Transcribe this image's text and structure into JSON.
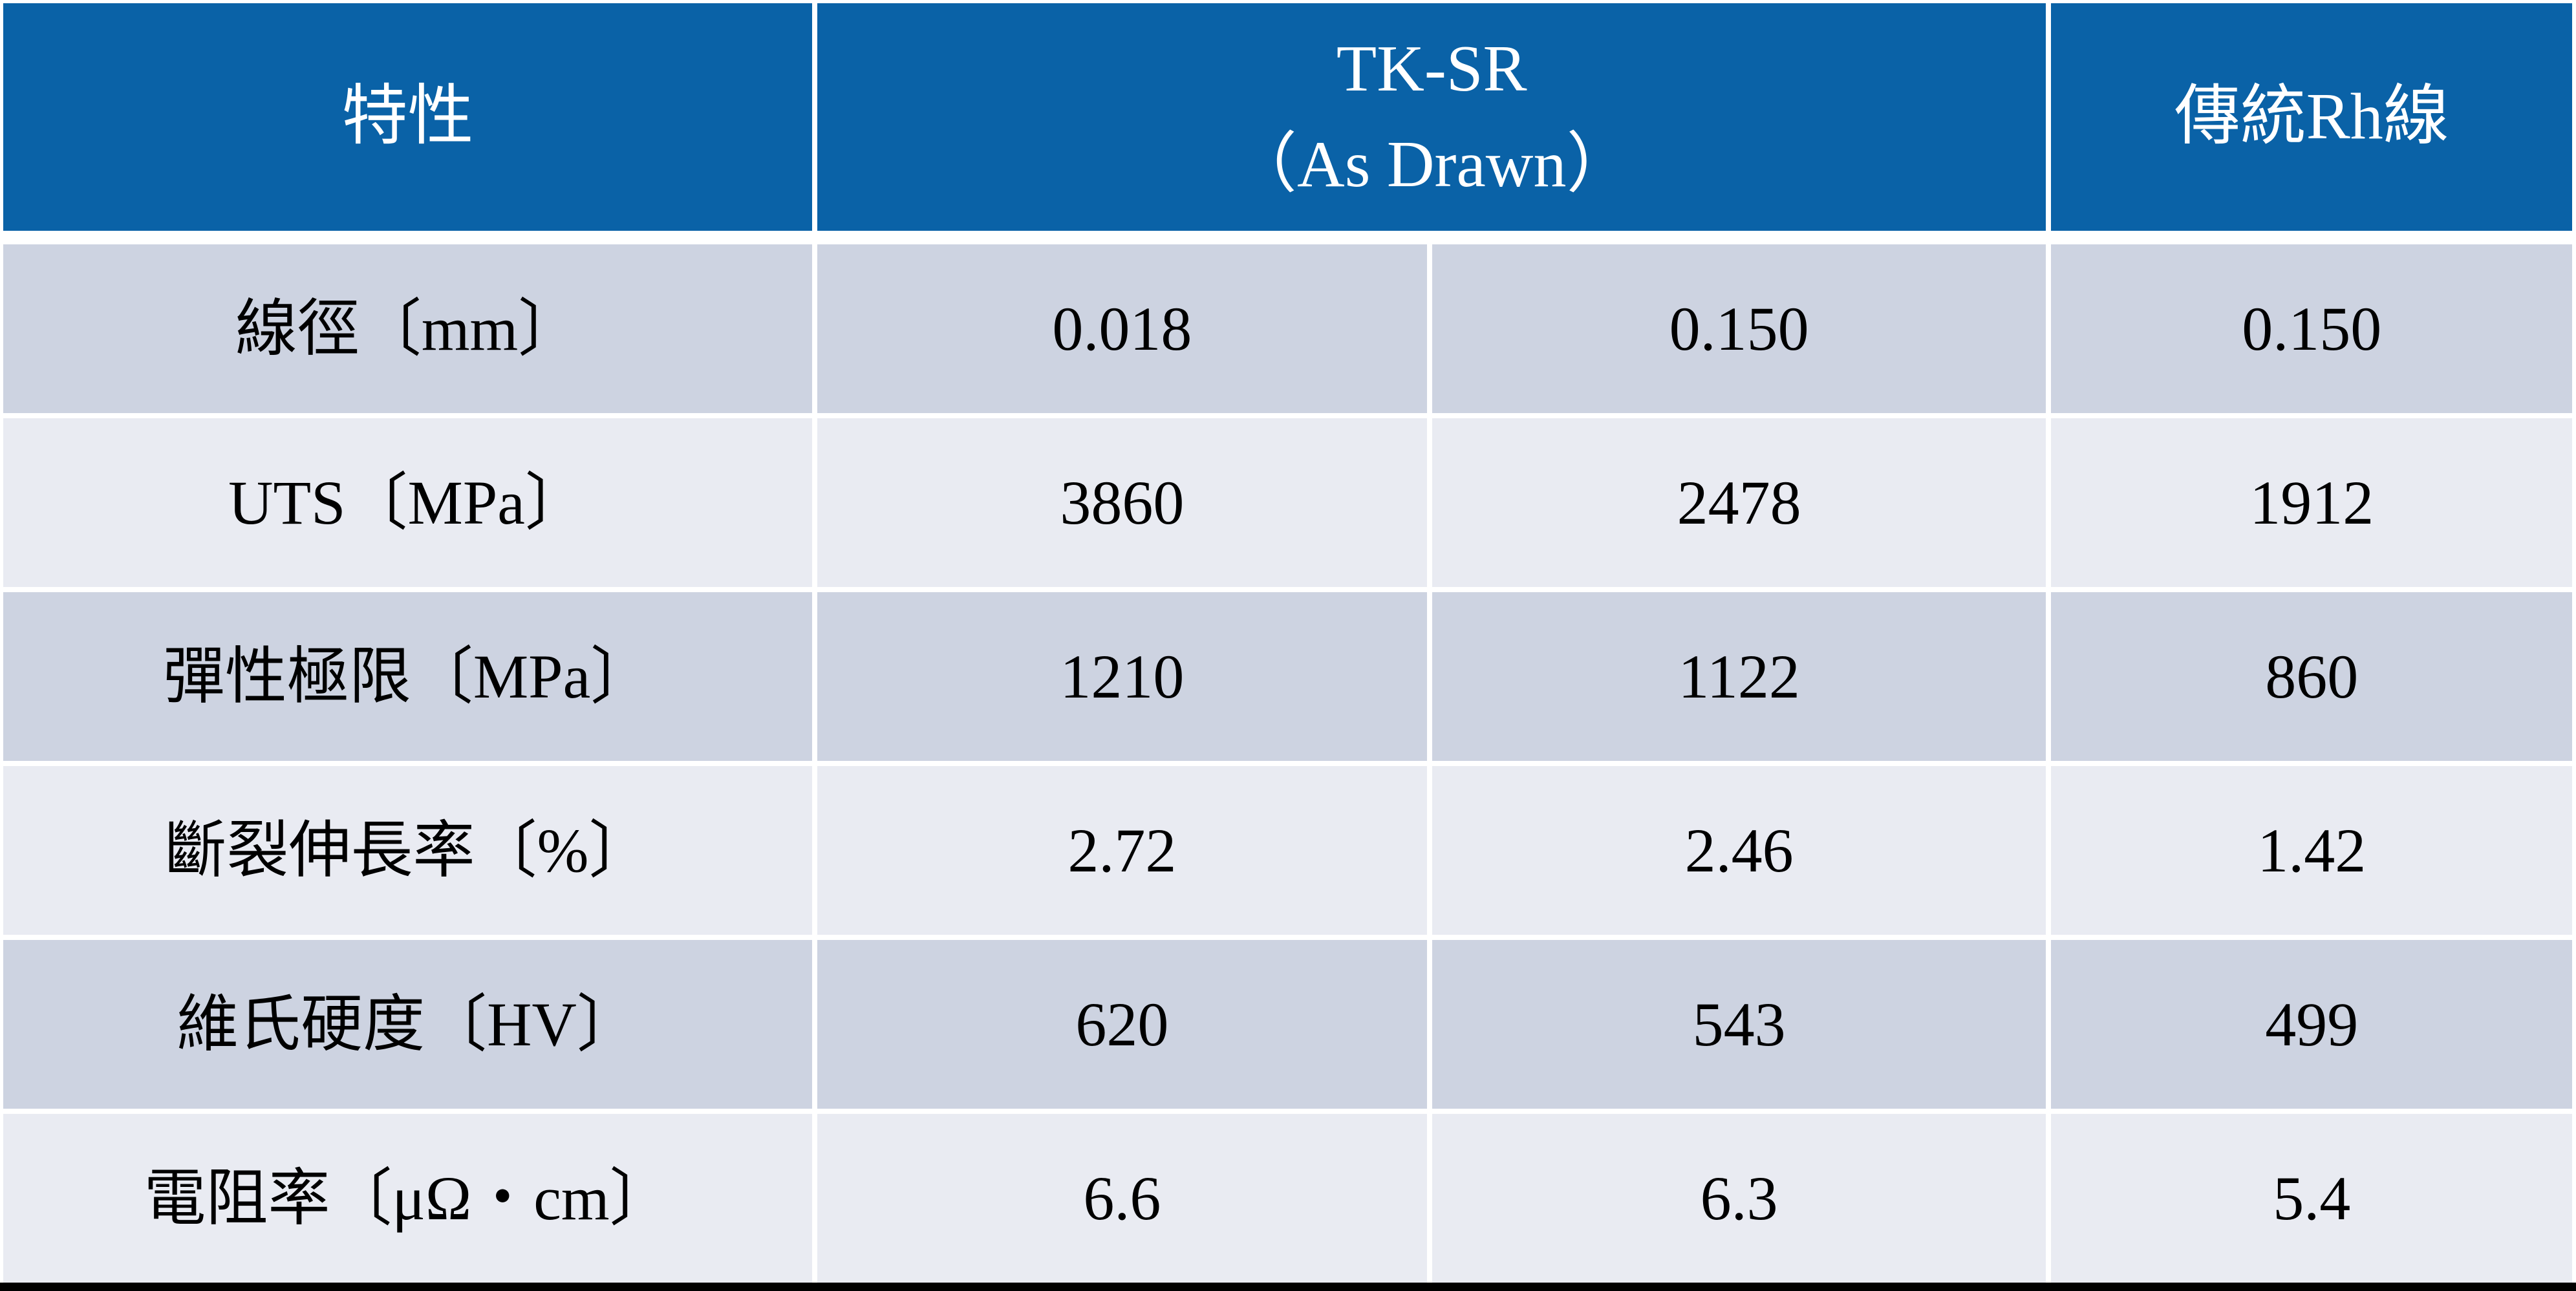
{
  "chart_data": {
    "type": "table",
    "title": "",
    "header": {
      "feature": "特性",
      "tksr_title": "TK-SR",
      "tksr_subtitle": "（As Drawn）",
      "rh": "傳統Rh線"
    },
    "rows": [
      {
        "label": "線徑〔mm〕",
        "values": [
          "0.018",
          "0.150",
          "0.150"
        ]
      },
      {
        "label": "UTS〔MPa〕",
        "values": [
          "3860",
          "2478",
          "1912"
        ]
      },
      {
        "label": "彈性極限〔MPa〕",
        "values": [
          "1210",
          "1122",
          "860"
        ]
      },
      {
        "label": "斷裂伸長率〔%〕",
        "values": [
          "2.72",
          "2.46",
          "1.42"
        ]
      },
      {
        "label": "維氏硬度〔HV〕",
        "values": [
          "620",
          "543",
          "499"
        ]
      },
      {
        "label": "電阻率〔μΩ・cm〕",
        "values": [
          "6.6",
          "6.3",
          "5.4"
        ]
      }
    ]
  },
  "colors": {
    "header_bg": "#0a62a7",
    "row_odd_bg": "#cdd3e1",
    "row_even_bg": "#e9ebf2",
    "header_text": "#ffffff",
    "body_text": "#000000",
    "bottom_bar": "#000000",
    "grid_line": "#ffffff"
  }
}
